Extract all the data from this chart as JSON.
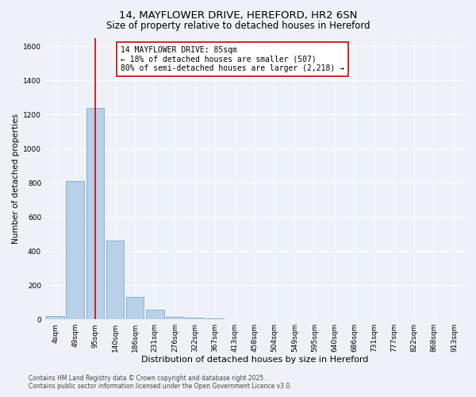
{
  "title": "14, MAYFLOWER DRIVE, HEREFORD, HR2 6SN",
  "subtitle": "Size of property relative to detached houses in Hereford",
  "xlabel": "Distribution of detached houses by size in Hereford",
  "ylabel": "Number of detached properties",
  "categories": [
    "4sqm",
    "49sqm",
    "95sqm",
    "140sqm",
    "186sqm",
    "231sqm",
    "276sqm",
    "322sqm",
    "367sqm",
    "413sqm",
    "458sqm",
    "504sqm",
    "549sqm",
    "595sqm",
    "640sqm",
    "686sqm",
    "731sqm",
    "777sqm",
    "822sqm",
    "868sqm",
    "913sqm"
  ],
  "values": [
    20,
    810,
    1240,
    460,
    130,
    55,
    15,
    8,
    3,
    1,
    0,
    0,
    0,
    0,
    0,
    0,
    0,
    0,
    0,
    0,
    0
  ],
  "bar_color": "#b8d0e8",
  "bar_edge_color": "#7aaacf",
  "bar_edge_width": 0.6,
  "vline_x_index": 2,
  "vline_color": "#cc0000",
  "annotation_line1": "14 MAYFLOWER DRIVE: 85sqm",
  "annotation_line2": "← 18% of detached houses are smaller (507)",
  "annotation_line3": "80% of semi-detached houses are larger (2,218) →",
  "annotation_box_color": "#ffffff",
  "annotation_box_edge_color": "#cc0000",
  "ylim": [
    0,
    1650
  ],
  "yticks": [
    0,
    200,
    400,
    600,
    800,
    1000,
    1200,
    1400,
    1600
  ],
  "background_color": "#eef2f8",
  "plot_bg_color": "#eef2f8",
  "footer_line1": "Contains HM Land Registry data © Crown copyright and database right 2025.",
  "footer_line2": "Contains public sector information licensed under the Open Government Licence v3.0.",
  "title_fontsize": 9.5,
  "subtitle_fontsize": 8.5,
  "xlabel_fontsize": 8,
  "ylabel_fontsize": 7.5,
  "tick_fontsize": 6.5,
  "annotation_fontsize": 7,
  "footer_fontsize": 5.5
}
